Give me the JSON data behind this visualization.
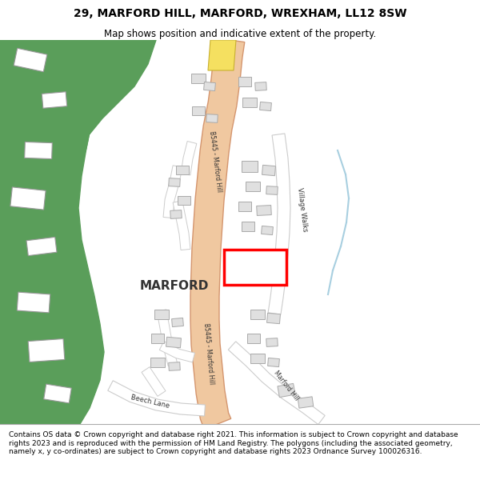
{
  "title": "29, MARFORD HILL, MARFORD, WREXHAM, LL12 8SW",
  "subtitle": "Map shows position and indicative extent of the property.",
  "footer": "Contains OS data © Crown copyright and database right 2021. This information is subject to Crown copyright and database rights 2023 and is reproduced with the permission of HM Land Registry. The polygons (including the associated geometry, namely x, y co-ordinates) are subject to Crown copyright and database rights 2023 Ordnance Survey 100026316.",
  "bg_color": "#ffffff",
  "map_bg": "#f0eeeb",
  "green_color": "#5a9e5a",
  "road_main_color": "#f0c8a0",
  "road_main_edge": "#d4956e",
  "road_minor_color": "#ffffff",
  "road_minor_edge": "#cccccc",
  "building_color": "#e0e0e0",
  "building_edge": "#aaaaaa",
  "water_color": "#a8cfe0",
  "highlight_color": "#ff0000",
  "highlight_fill": "#ffffff",
  "road_label_upper": "B5445 - Marford Hill",
  "road_label_lower": "B5445 - Marford Hill",
  "road_label_lower2": "Marford Hill",
  "label_marford": "MARFORD",
  "label_village_walks": "Village Walks",
  "label_beech_lane": "Beech Lane",
  "figsize": [
    6.0,
    6.25
  ],
  "dpi": 100
}
